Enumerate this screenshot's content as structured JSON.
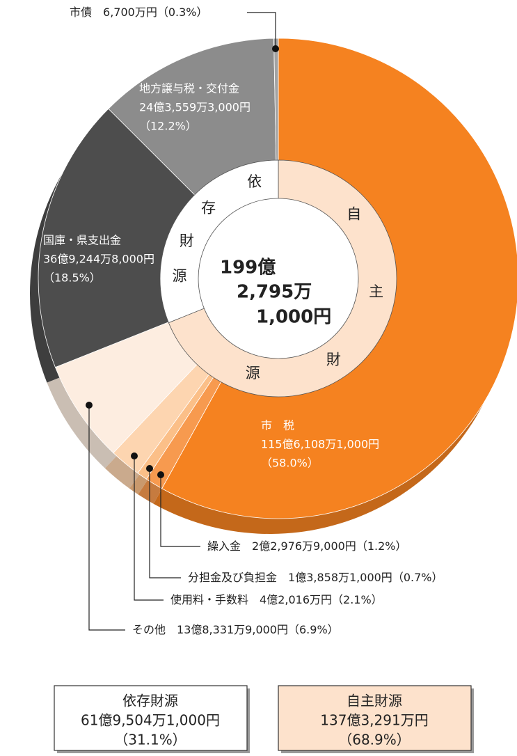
{
  "chart_data": {
    "type": "pie",
    "total_label": [
      "199億",
      "2,795万",
      "1,000円"
    ],
    "categories": [
      "市　税",
      "繰入金",
      "分担金及び負担金",
      "使用料・手数料",
      "その他",
      "国庫・県支出金",
      "地方譲与税・交付金",
      "市債"
    ],
    "amounts": [
      "115億6,108万1,000円",
      "2億2,976万9,000円",
      "1億3,858万1,000円",
      "4億2,016万円",
      "13億8,331万9,000円",
      "36億9,244万8,000円",
      "24億3,559万3,000円",
      "6,700万円"
    ],
    "values": [
      58.0,
      1.2,
      0.7,
      2.1,
      6.9,
      18.5,
      12.2,
      0.3
    ],
    "value_labels": [
      "（58.0%）",
      "（1.2%）",
      "（0.7%）",
      "（2.1%）",
      "（6.9%）",
      "（18.5%）",
      "（12.2%）",
      "（0.3%）"
    ],
    "colors": [
      "#f58220",
      "#f79a4f",
      "#fbbf88",
      "#fdd5b0",
      "#fdede0",
      "#4d4d4d",
      "#8c8c8c",
      "#a3a3a3"
    ],
    "groups": [
      {
        "name": "自主財源",
        "chars": [
          "自",
          "主",
          "財",
          "源"
        ],
        "amount": "137億3,291万円",
        "value": 68.9,
        "value_label": "（68.9%）",
        "color": "#fde2cc"
      },
      {
        "name": "依存財源",
        "chars": [
          "依",
          "存",
          "財",
          "源"
        ],
        "amount": "61億9,504万1,000円",
        "value": 31.1,
        "value_label": "（31.1%）",
        "color": "#ffffff"
      }
    ]
  }
}
